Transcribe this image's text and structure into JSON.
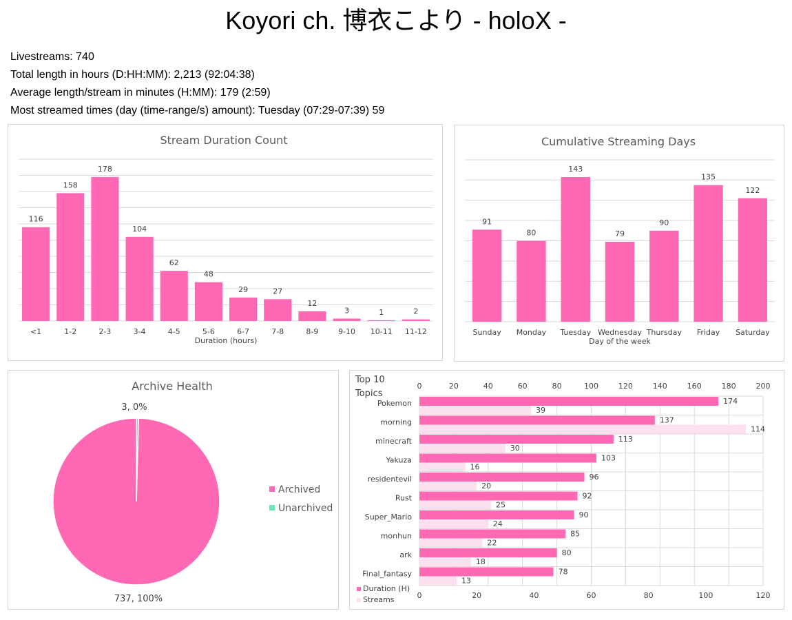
{
  "page": {
    "title": "Koyori ch. 博衣こより - holoX -",
    "stats": [
      "Livestreams: 740",
      "Total length in hours (D:HH:MM): 2,213 (92:04:38)",
      "Average length/stream in minutes (H:MM): 179 (2:59)",
      "Most streamed times (day (time-range/s) amount): Tuesday (07:29-07:39) 59"
    ]
  },
  "colors": {
    "primary": "#ff69b4",
    "secondary": "#fde0ef",
    "unarchived": "#66e8b5",
    "grid": "#d9d9d9"
  },
  "chart_data": [
    {
      "type": "bar",
      "title": "Stream Duration Count",
      "xlabel": "Duration (hours)",
      "ylabel": "",
      "categories": [
        "<1",
        "1-2",
        "2-3",
        "3-4",
        "4-5",
        "5-6",
        "6-7",
        "7-8",
        "8-9",
        "9-10",
        "10-11",
        "11-12"
      ],
      "values": [
        116,
        158,
        178,
        104,
        62,
        48,
        29,
        27,
        12,
        3,
        1,
        2
      ],
      "ylim": [
        0,
        200
      ],
      "grid": true
    },
    {
      "type": "bar",
      "title": "Cumulative Streaming Days",
      "xlabel": "Day of the week",
      "ylabel": "",
      "categories": [
        "Sunday",
        "Monday",
        "Tuesday",
        "Wednesday",
        "Thursday",
        "Friday",
        "Saturday"
      ],
      "values": [
        91,
        80,
        143,
        79,
        90,
        135,
        122
      ],
      "ylim": [
        0,
        160
      ],
      "grid": true
    },
    {
      "type": "pie",
      "title": "Archive Health",
      "labels": [
        "Archived",
        "Unarchived"
      ],
      "values": [
        737,
        3
      ],
      "data_labels": [
        "737, 100%",
        "3, 0%"
      ],
      "legend": "right"
    },
    {
      "type": "bar",
      "orientation": "horizontal",
      "title": "Top 10 Topics",
      "categories": [
        "Pokemon",
        "morning",
        "minecraft",
        "Yakuza",
        "residentevil",
        "Rust",
        "Super_Mario",
        "monhun",
        "ark",
        "Final_fantasy"
      ],
      "series": [
        {
          "name": "Duration (H)",
          "values": [
            174,
            137,
            113,
            103,
            96,
            92,
            90,
            85,
            80,
            78
          ],
          "axis": "top",
          "xlim": [
            0,
            200
          ]
        },
        {
          "name": "Streams",
          "values": [
            39,
            114,
            30,
            16,
            20,
            25,
            24,
            22,
            18,
            13
          ],
          "axis": "bottom",
          "xlim": [
            0,
            120
          ]
        }
      ],
      "top_ticks": [
        0,
        20,
        40,
        60,
        80,
        100,
        120,
        140,
        160,
        180,
        200
      ],
      "bottom_ticks": [
        0,
        20,
        40,
        60,
        80,
        100,
        120
      ],
      "legend": "bottom-left",
      "grid": true
    }
  ]
}
